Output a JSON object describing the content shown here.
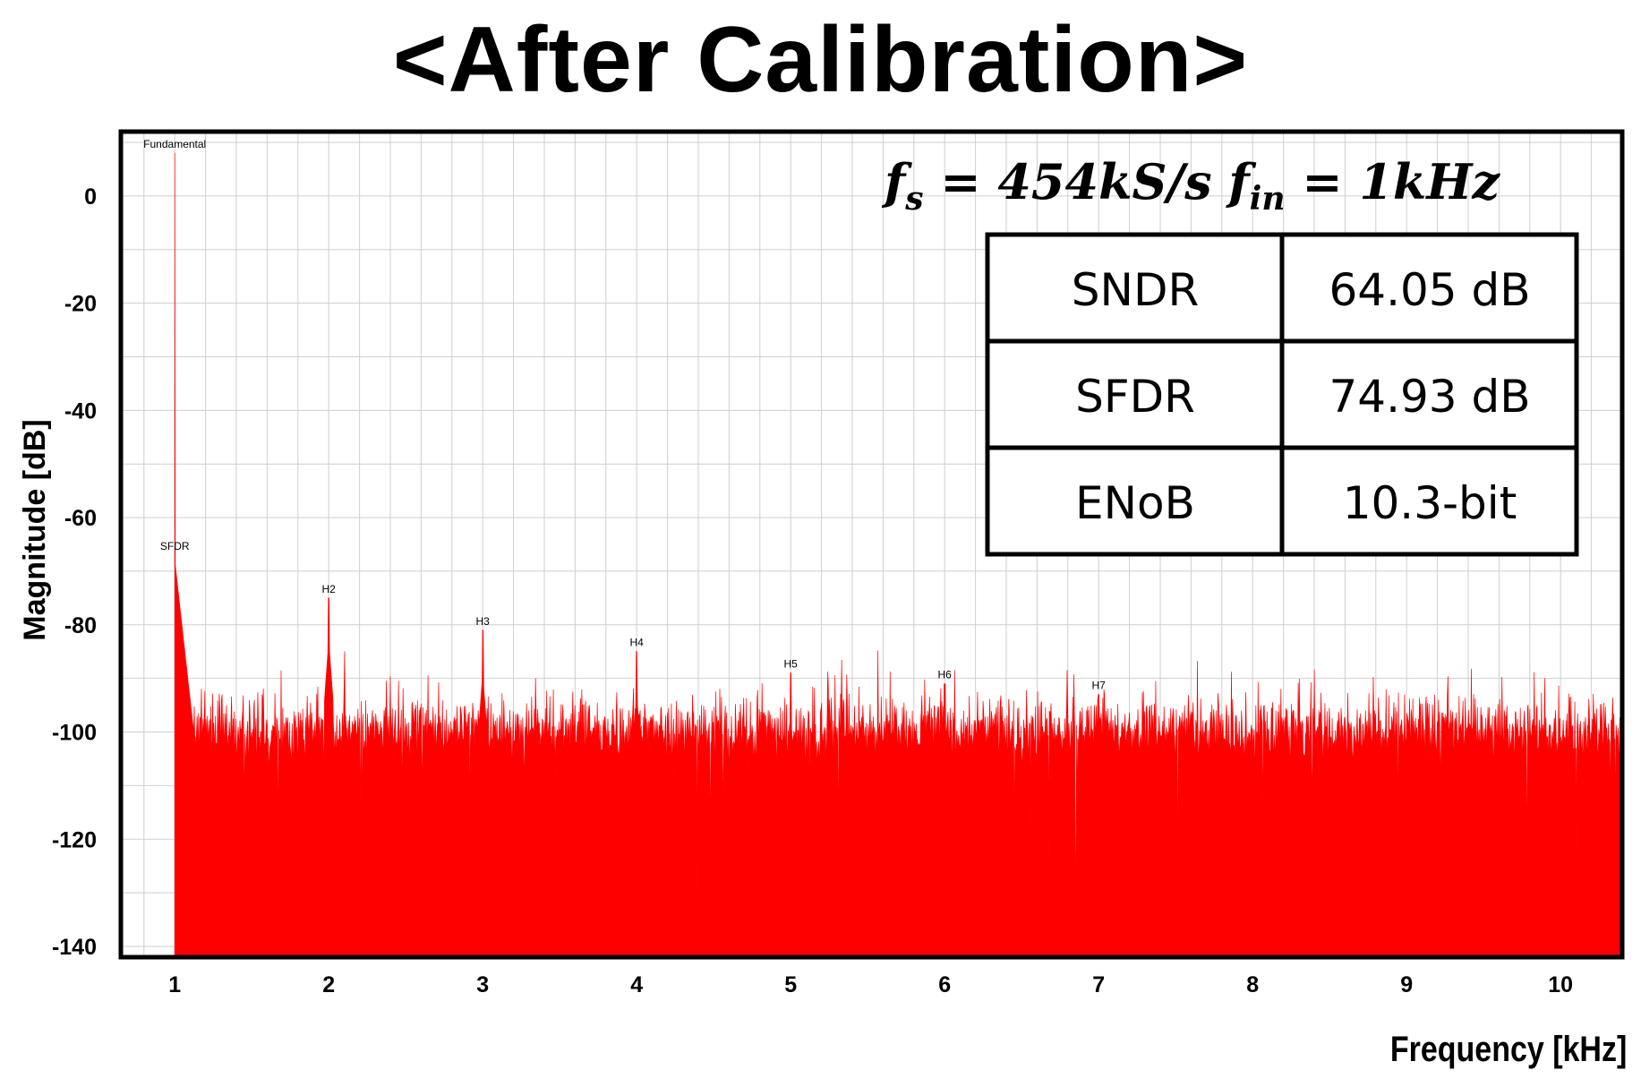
{
  "title": "<After Calibration>",
  "chart_data": {
    "type": "line",
    "xlabel": "Frequency  [kHz]",
    "ylabel": "Magnitude [dB]",
    "xlim": [
      0.65,
      10.4
    ],
    "ylim": [
      -142,
      12
    ],
    "x_ticks": [
      1,
      2,
      3,
      4,
      5,
      6,
      7,
      8,
      9,
      10
    ],
    "y_ticks": [
      0,
      -20,
      -40,
      -60,
      -80,
      -100,
      -120,
      -140
    ],
    "grid": true,
    "series_color": "#ff0000",
    "noise_floor_db": -100,
    "markers": [
      {
        "label": "Fundamental",
        "x": 1,
        "y": 8
      },
      {
        "label": "SFDR",
        "x": 1,
        "y": -67
      },
      {
        "label": "H2",
        "x": 2,
        "y": -75
      },
      {
        "label": "H3",
        "x": 3,
        "y": -81
      },
      {
        "label": "H4",
        "x": 4,
        "y": -85
      },
      {
        "label": "H5",
        "x": 5,
        "y": -89
      },
      {
        "label": "H6",
        "x": 6,
        "y": -91
      },
      {
        "label": "H7",
        "x": 7,
        "y": -93
      }
    ]
  },
  "annotation": {
    "fs": "f",
    "fs_sub": "s",
    "fs_value": " = 454kS/s ",
    "fin": "f",
    "fin_sub": "in",
    "fin_value": " = 1kHz"
  },
  "metrics": [
    {
      "name": "SNDR",
      "value": "64.05 dB"
    },
    {
      "name": "SFDR",
      "value": "74.93 dB"
    },
    {
      "name": "ENoB",
      "value": "10.3-bit"
    }
  ]
}
